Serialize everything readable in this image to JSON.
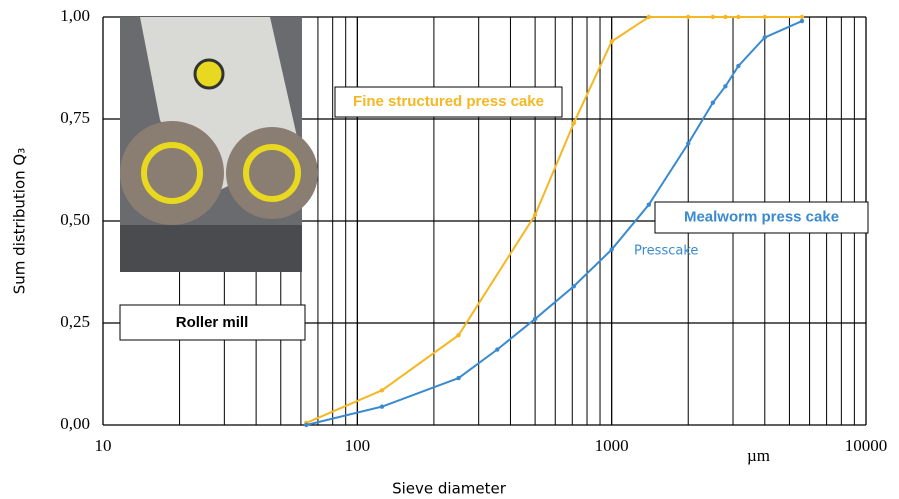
{
  "chart_data": {
    "type": "line",
    "xlabel": "Sieve diameter",
    "ylabel": "Sum distribution Q₃",
    "xscale": "log",
    "xlim": [
      10,
      10000
    ],
    "xticks": [
      10,
      100,
      1000,
      10000
    ],
    "xminorticks": [
      20,
      30,
      40,
      50,
      60,
      70,
      80,
      90,
      200,
      300,
      400,
      500,
      600,
      700,
      800,
      900,
      2000,
      3000,
      4000,
      5000,
      6000,
      7000,
      8000,
      9000
    ],
    "ylim": [
      0,
      1
    ],
    "yticks": [
      {
        "value": 0,
        "label": "0,00"
      },
      {
        "value": 0.25,
        "label": "0,25"
      },
      {
        "value": 0.5,
        "label": "0,50"
      },
      {
        "value": 0.75,
        "label": "0,75"
      },
      {
        "value": 1,
        "label": "1,00"
      }
    ],
    "grid": true,
    "series": [
      {
        "name": "Fine structured press cake",
        "color": "#f5b722",
        "x": [
          63,
          125,
          250,
          500,
          710,
          1000,
          1400,
          2000,
          2500,
          2800,
          3150,
          4000,
          5600
        ],
        "values": [
          0.005,
          0.085,
          0.22,
          0.515,
          0.74,
          0.94,
          1.0,
          1.0,
          1.0,
          1.0,
          1.0,
          1.0,
          1.0
        ]
      },
      {
        "name": "Mealworm press cake",
        "color": "#3a8ad0",
        "x": [
          63,
          125,
          250,
          355,
          500,
          710,
          1000,
          1400,
          2000,
          2500,
          2800,
          3150,
          4000,
          5600
        ],
        "values": [
          0.0,
          0.045,
          0.115,
          0.185,
          0.26,
          0.34,
          0.43,
          0.54,
          0.69,
          0.79,
          0.83,
          0.88,
          0.95,
          0.99
        ]
      }
    ],
    "annotations": {
      "photo": "Roller mill",
      "series_note": "Presscake",
      "unit": "µm"
    }
  }
}
